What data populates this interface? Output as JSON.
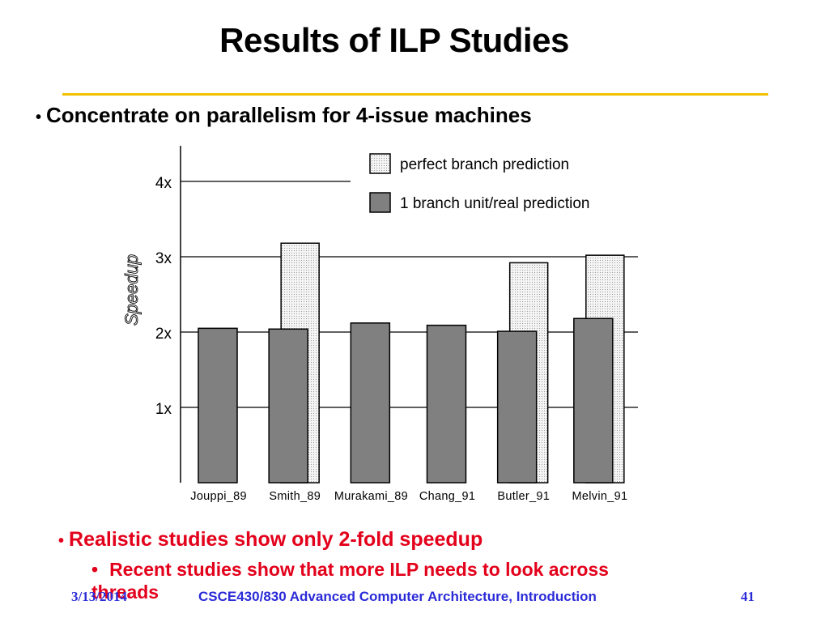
{
  "slide": {
    "title": "Results of ILP Studies",
    "bullet": "Concentrate on parallelism for 4-issue machines",
    "bullet_marker": "•",
    "red_bullet": "Realistic studies show only 2-fold speedup",
    "red_sub_bullet": "Recent studies show that more ILP needs to look across threads",
    "footer_date": "3/13/2014",
    "footer_course": "CSCE430/830 Advanced Computer Architecture, Introduction",
    "footer_page": "41"
  },
  "colors": {
    "accent_rule": "#f2c200",
    "red_text": "#e3001b",
    "footer_blue": "#2b2bd8",
    "bar_dark": "#808080",
    "bar_light": "#ebebeb"
  },
  "chart_data": {
    "type": "bar",
    "title": "",
    "xlabel": "",
    "ylabel": "Speedup",
    "ylim": [
      0,
      4.8
    ],
    "ytick_labels": [
      "1x",
      "2x",
      "3x",
      "4x"
    ],
    "ytick_values": [
      1,
      2,
      3,
      4
    ],
    "grid": "horizontal",
    "legend_position": "top-right",
    "categories": [
      "Jouppi_89",
      "Smith_89",
      "Murakami_89",
      "Chang_91",
      "Butler_91",
      "Melvin_91"
    ],
    "series": [
      {
        "name": "perfect branch prediction",
        "values": [
          null,
          3.18,
          null,
          null,
          2.92,
          3.02
        ]
      },
      {
        "name": "1 branch unit/real prediction",
        "values": [
          2.05,
          2.04,
          2.12,
          2.09,
          2.01,
          2.18
        ]
      }
    ]
  }
}
